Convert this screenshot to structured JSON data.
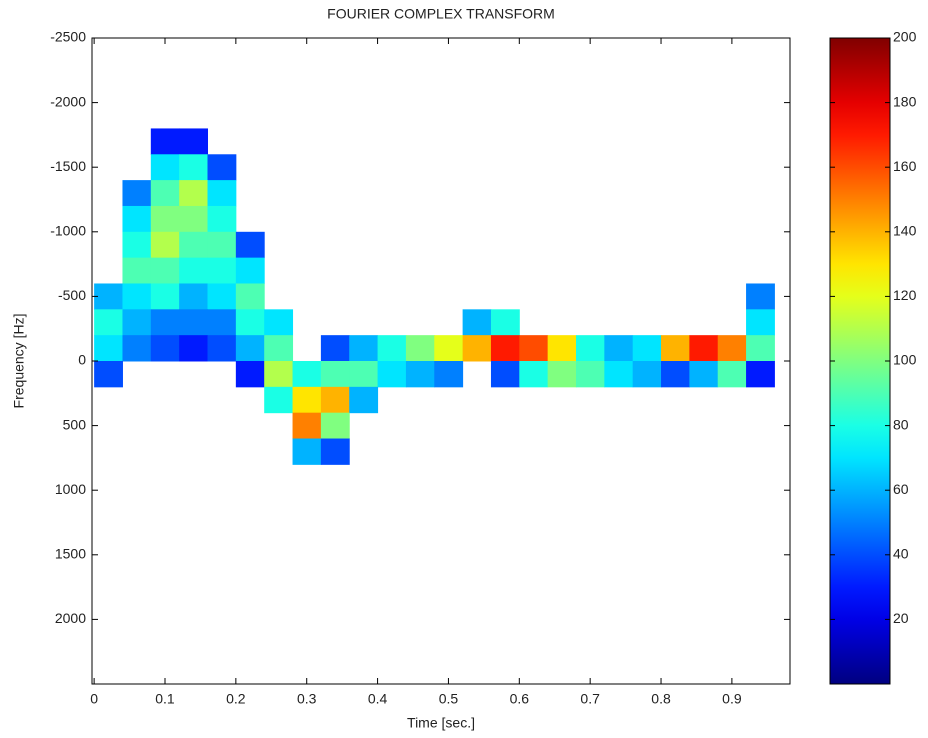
{
  "chart_data": {
    "type": "heatmap",
    "title": "FOURIER COMPLEX TRANSFORM",
    "x_label": "Time [sec.]",
    "y_label": "Frequency [Hz]",
    "xlim": [
      -0.003,
      0.982
    ],
    "xticks": [
      0,
      0.1,
      0.2,
      0.3,
      0.4,
      0.5,
      0.6,
      0.7,
      0.8,
      0.9
    ],
    "ylim": [
      -2500,
      2500
    ],
    "y_reversed": true,
    "yticks": [
      -2500,
      -2000,
      -1500,
      -1000,
      -500,
      0,
      500,
      1000,
      1500,
      2000
    ],
    "colormap": "jet",
    "clim": [
      0,
      200
    ],
    "colorbar_ticks": [
      20,
      40,
      60,
      80,
      100,
      120,
      140,
      160,
      180,
      200
    ],
    "x": [
      0.02,
      0.06,
      0.1,
      0.14,
      0.18,
      0.22,
      0.26,
      0.3,
      0.34,
      0.38,
      0.42,
      0.46,
      0.5,
      0.54,
      0.58,
      0.62,
      0.66,
      0.7,
      0.74,
      0.78,
      0.82,
      0.86,
      0.9,
      0.94
    ],
    "y": [
      -1700,
      -1500,
      -1300,
      -1100,
      -900,
      -700,
      -500,
      -300,
      -100,
      100,
      300,
      500,
      700
    ],
    "z": [
      [
        null,
        null,
        30,
        30,
        null,
        null,
        null,
        null,
        null,
        null,
        null,
        null,
        null,
        null,
        null,
        null,
        null,
        null,
        null,
        null,
        null,
        null,
        null,
        null
      ],
      [
        null,
        null,
        70,
        80,
        40,
        null,
        null,
        null,
        null,
        null,
        null,
        null,
        null,
        null,
        null,
        null,
        null,
        null,
        null,
        null,
        null,
        null,
        null,
        null
      ],
      [
        null,
        50,
        90,
        110,
        70,
        null,
        null,
        null,
        null,
        null,
        null,
        null,
        null,
        null,
        null,
        null,
        null,
        null,
        null,
        null,
        null,
        null,
        null,
        null
      ],
      [
        null,
        70,
        100,
        100,
        80,
        null,
        null,
        null,
        null,
        null,
        null,
        null,
        null,
        null,
        null,
        null,
        null,
        null,
        null,
        null,
        null,
        null,
        null,
        null
      ],
      [
        null,
        80,
        110,
        90,
        90,
        40,
        null,
        null,
        null,
        null,
        null,
        null,
        null,
        null,
        null,
        null,
        null,
        null,
        null,
        null,
        null,
        null,
        null,
        null
      ],
      [
        null,
        90,
        90,
        80,
        80,
        70,
        null,
        null,
        null,
        null,
        null,
        null,
        null,
        null,
        null,
        null,
        null,
        null,
        null,
        null,
        null,
        null,
        null,
        null
      ],
      [
        60,
        70,
        80,
        60,
        70,
        90,
        null,
        null,
        null,
        null,
        null,
        null,
        null,
        null,
        null,
        null,
        null,
        null,
        null,
        null,
        null,
        null,
        null,
        50
      ],
      [
        80,
        60,
        50,
        50,
        50,
        80,
        70,
        null,
        null,
        null,
        null,
        null,
        null,
        60,
        80,
        null,
        null,
        null,
        null,
        null,
        null,
        null,
        null,
        70
      ],
      [
        70,
        50,
        40,
        30,
        40,
        60,
        90,
        null,
        40,
        60,
        80,
        100,
        120,
        140,
        170,
        160,
        130,
        80,
        60,
        70,
        140,
        170,
        150,
        90
      ],
      [
        40,
        null,
        null,
        null,
        null,
        30,
        110,
        80,
        90,
        90,
        70,
        60,
        50,
        null,
        40,
        80,
        100,
        90,
        70,
        60,
        40,
        60,
        90,
        30
      ],
      [
        null,
        null,
        null,
        null,
        null,
        null,
        80,
        130,
        140,
        60,
        null,
        null,
        null,
        null,
        null,
        null,
        null,
        null,
        null,
        null,
        null,
        null,
        null,
        null
      ],
      [
        null,
        null,
        null,
        null,
        null,
        null,
        null,
        150,
        100,
        null,
        null,
        null,
        null,
        null,
        null,
        null,
        null,
        null,
        null,
        null,
        null,
        null,
        null,
        null
      ],
      [
        null,
        null,
        null,
        null,
        null,
        null,
        null,
        60,
        40,
        null,
        null,
        null,
        null,
        null,
        null,
        null,
        null,
        null,
        null,
        null,
        null,
        null,
        null,
        null
      ]
    ]
  }
}
